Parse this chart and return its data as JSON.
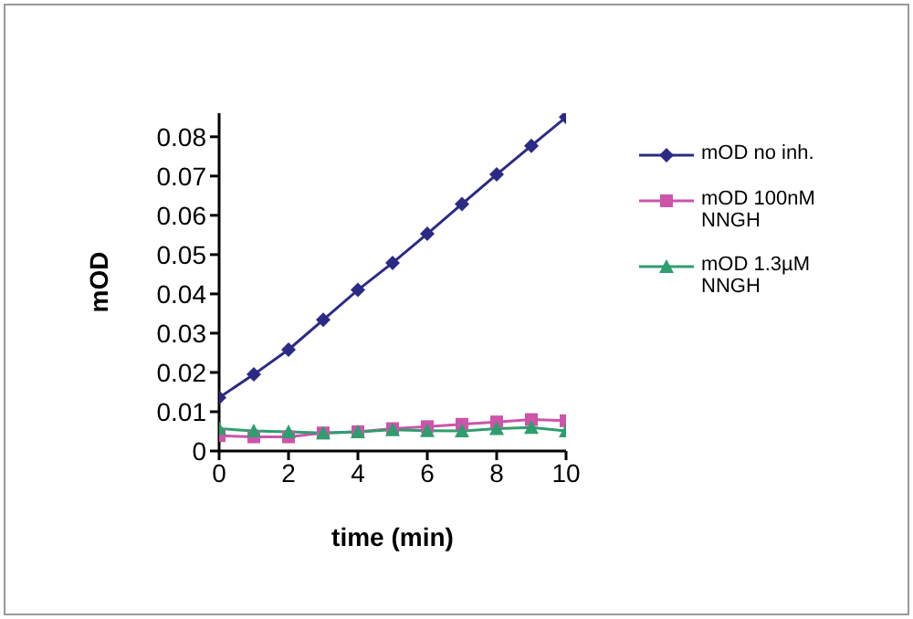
{
  "chart_data": {
    "type": "line",
    "xlabel": "time (min)",
    "ylabel": "mOD",
    "x": [
      0,
      1,
      2,
      3,
      4,
      5,
      6,
      7,
      8,
      9,
      10
    ],
    "series": [
      {
        "name": "mOD no inh.",
        "color": "#2b2b85",
        "marker": "diamond",
        "values": [
          0.0136,
          0.0195,
          0.0258,
          0.0334,
          0.041,
          0.0479,
          0.0553,
          0.0629,
          0.0704,
          0.0777,
          0.085
        ]
      },
      {
        "name": "mOD 100nM NNGH",
        "color": "#cc55aa",
        "marker": "square",
        "values": [
          0.0039,
          0.0036,
          0.0036,
          0.0046,
          0.0049,
          0.0057,
          0.0062,
          0.0068,
          0.0074,
          0.008,
          0.0077
        ]
      },
      {
        "name": "mOD 1.3µM NNGH",
        "color": "#2e9e6e",
        "marker": "triangle",
        "values": [
          0.0057,
          0.0051,
          0.0049,
          0.0046,
          0.0049,
          0.0054,
          0.0052,
          0.0051,
          0.0057,
          0.006,
          0.0051
        ]
      }
    ],
    "xlim": [
      0,
      10
    ],
    "xticks": [
      0,
      2,
      4,
      6,
      8,
      10
    ],
    "ylim": [
      0,
      0.086
    ],
    "yticks": [
      0,
      0.01,
      0.02,
      0.03,
      0.04,
      0.05,
      0.06,
      0.07,
      0.08
    ],
    "grid": false,
    "legend": "right",
    "line_style": "solid"
  }
}
